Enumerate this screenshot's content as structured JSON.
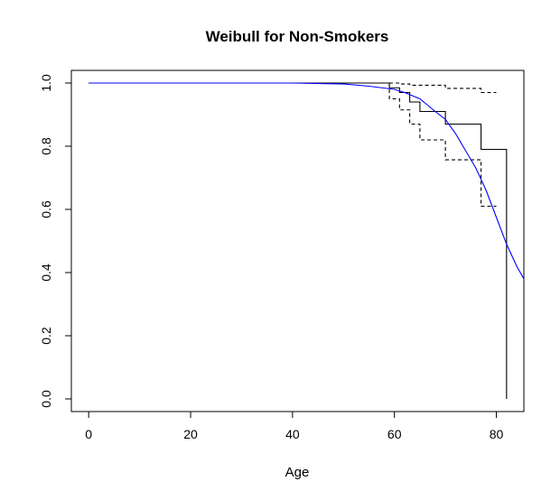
{
  "chart_data": {
    "type": "line",
    "title": "Weibull for Non-Smokers",
    "xlabel": "Age",
    "ylabel": "",
    "xlim": [
      -3.4,
      85.4
    ],
    "ylim": [
      -0.04,
      1.04
    ],
    "x_ticks": [
      0,
      20,
      40,
      60,
      80
    ],
    "x_tick_labels": [
      "0",
      "20",
      "40",
      "60",
      "80"
    ],
    "y_ticks": [
      0.0,
      0.2,
      0.4,
      0.6,
      0.8,
      1.0
    ],
    "y_tick_labels": [
      "0.0",
      "0.2",
      "0.4",
      "0.6",
      "0.8",
      "1.0"
    ],
    "grid": false,
    "legend": "none",
    "series": [
      {
        "style": "step",
        "color": "#000000",
        "dash": "solid",
        "points": [
          [
            0,
            1.0
          ],
          [
            59,
            1.0
          ],
          [
            59,
            0.985
          ],
          [
            61,
            0.985
          ],
          [
            61,
            0.97
          ],
          [
            63,
            0.97
          ],
          [
            63,
            0.94
          ],
          [
            65,
            0.94
          ],
          [
            65,
            0.91
          ],
          [
            70,
            0.91
          ],
          [
            70,
            0.87
          ],
          [
            77,
            0.87
          ],
          [
            77,
            0.79
          ],
          [
            82,
            0.79
          ],
          [
            82,
            0.0
          ]
        ]
      },
      {
        "style": "step",
        "color": "#000000",
        "dash": "dashed",
        "points": [
          [
            59,
            1.0
          ],
          [
            61,
            1.0
          ],
          [
            61,
            0.997
          ],
          [
            63,
            0.997
          ],
          [
            63,
            0.993
          ],
          [
            70,
            0.993
          ],
          [
            70,
            0.983
          ],
          [
            77,
            0.983
          ],
          [
            77,
            0.97
          ],
          [
            80,
            0.97
          ]
        ]
      },
      {
        "style": "step",
        "color": "#000000",
        "dash": "dashed",
        "points": [
          [
            59,
            1.0
          ],
          [
            59,
            0.95
          ],
          [
            61,
            0.95
          ],
          [
            61,
            0.915
          ],
          [
            63,
            0.915
          ],
          [
            63,
            0.87
          ],
          [
            65,
            0.87
          ],
          [
            65,
            0.82
          ],
          [
            70,
            0.82
          ],
          [
            70,
            0.757
          ],
          [
            77,
            0.757
          ],
          [
            77,
            0.61
          ],
          [
            80,
            0.61
          ]
        ]
      },
      {
        "style": "line",
        "color": "#0000ff",
        "dash": "solid",
        "points": [
          [
            0,
            1.0
          ],
          [
            40,
            1.0
          ],
          [
            50,
            0.997
          ],
          [
            55,
            0.99
          ],
          [
            60,
            0.98
          ],
          [
            62,
            0.97
          ],
          [
            65,
            0.95
          ],
          [
            68,
            0.91
          ],
          [
            70,
            0.885
          ],
          [
            72,
            0.84
          ],
          [
            74,
            0.785
          ],
          [
            76,
            0.73
          ],
          [
            78,
            0.66
          ],
          [
            80,
            0.575
          ],
          [
            82,
            0.49
          ],
          [
            84,
            0.42
          ],
          [
            85.4,
            0.38
          ]
        ]
      }
    ]
  }
}
